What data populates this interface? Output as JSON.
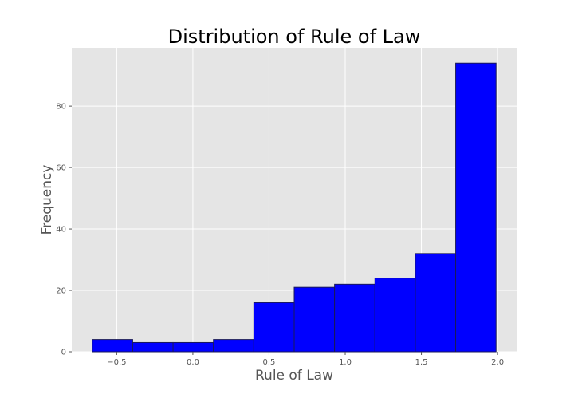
{
  "chart_data": {
    "type": "bar",
    "title": "Distribution of Rule of Law",
    "xlabel": "Rule of Law",
    "ylabel": "Frequency",
    "bins": [
      {
        "start": -0.66,
        "end": -0.395,
        "count": 4
      },
      {
        "start": -0.395,
        "end": -0.13,
        "count": 3
      },
      {
        "start": -0.13,
        "end": 0.135,
        "count": 3
      },
      {
        "start": 0.135,
        "end": 0.4,
        "count": 4
      },
      {
        "start": 0.4,
        "end": 0.665,
        "count": 16
      },
      {
        "start": 0.665,
        "end": 0.93,
        "count": 21
      },
      {
        "start": 0.93,
        "end": 1.195,
        "count": 22
      },
      {
        "start": 1.195,
        "end": 1.46,
        "count": 24
      },
      {
        "start": 1.46,
        "end": 1.725,
        "count": 32
      },
      {
        "start": 1.725,
        "end": 1.99,
        "count": 94
      }
    ],
    "xlim": [
      -0.795,
      2.125
    ],
    "ylim": [
      0,
      99
    ],
    "x_ticks": [
      {
        "value": -0.5,
        "label": "−0.5"
      },
      {
        "value": 0.0,
        "label": "0.0"
      },
      {
        "value": 0.5,
        "label": "0.5"
      },
      {
        "value": 1.0,
        "label": "1.0"
      },
      {
        "value": 1.5,
        "label": "1.5"
      },
      {
        "value": 2.0,
        "label": "2.0"
      }
    ],
    "y_ticks": [
      {
        "value": 0,
        "label": "0"
      },
      {
        "value": 20,
        "label": "20"
      },
      {
        "value": 40,
        "label": "40"
      },
      {
        "value": 60,
        "label": "60"
      },
      {
        "value": 80,
        "label": "80"
      }
    ],
    "grid": true,
    "bar_color": "#0000ff",
    "bar_edge_color": "#1a1a5a",
    "plot_background": "#e5e5e5",
    "grid_color": "#ffffff",
    "legend": "none"
  }
}
